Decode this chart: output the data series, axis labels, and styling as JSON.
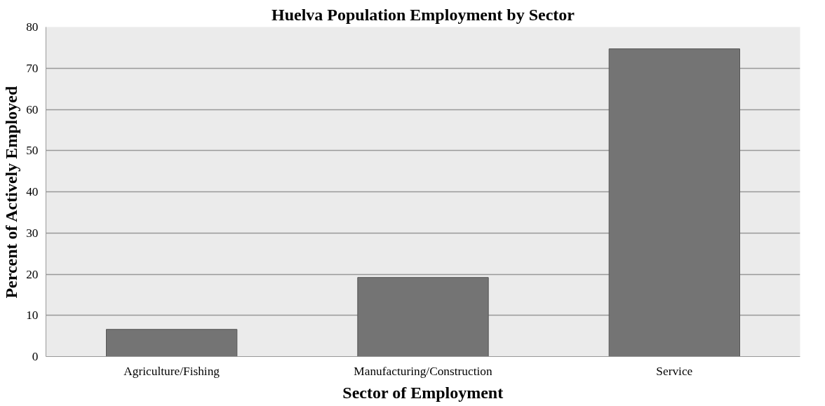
{
  "chart_data": {
    "type": "bar",
    "title": "Huelva Population Employment by Sector",
    "xlabel": "Sector of Employment",
    "ylabel": "Percent of Actively Employed",
    "categories": [
      "Agriculture/Fishing",
      "Manufacturing/Construction",
      "Service"
    ],
    "values": [
      6.6,
      19.2,
      74.7
    ],
    "color": "#747474",
    "ylim": [
      0,
      80
    ],
    "yticks": [
      0,
      10,
      20,
      30,
      40,
      50,
      60,
      70,
      80
    ],
    "grid": "y"
  }
}
